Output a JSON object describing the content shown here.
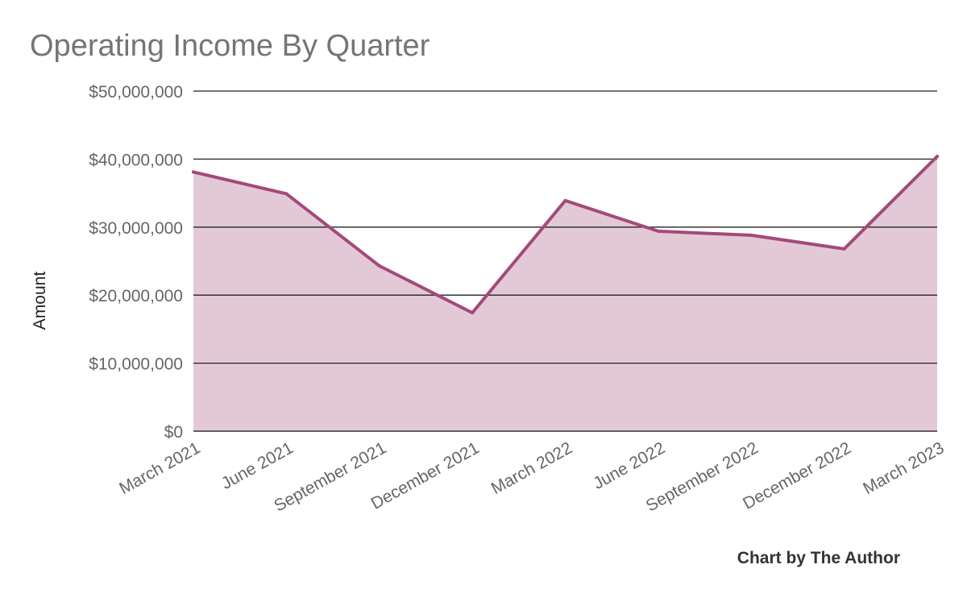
{
  "chart_data": {
    "type": "area",
    "title": "Operating Income By Quarter",
    "xlabel": "",
    "ylabel": "Amount",
    "categories": [
      "March 2021",
      "June 2021",
      "September 2021",
      "December 2021",
      "March 2022",
      "June 2022",
      "September 2022",
      "December 2022",
      "March 2023"
    ],
    "values": [
      38100000,
      34900000,
      24300000,
      17400000,
      33900000,
      29400000,
      28800000,
      26800000,
      40400000
    ],
    "ylim": [
      0,
      50000000
    ],
    "y_ticks": [
      "$0",
      "$10,000,000",
      "$20,000,000",
      "$30,000,000",
      "$40,000,000",
      "$50,000,000"
    ],
    "grid": true,
    "colors": {
      "line": "#A34A7A",
      "fill": "#E3C9D6"
    },
    "credit": "Chart by The Author"
  }
}
